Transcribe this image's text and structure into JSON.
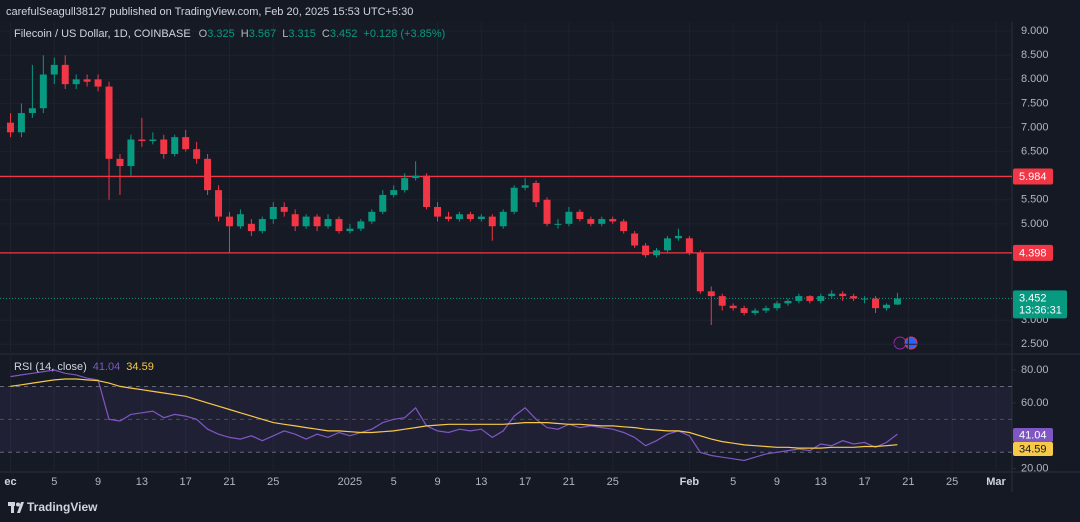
{
  "chart_data": {
    "type": "candlestick",
    "attribution": "carefulSeagull38127 published on TradingView.com, Feb 20, 2025 15:53 UTC+5:30",
    "title": "Filecoin / US Dollar, 1D, COINBASE",
    "legend": {
      "open_label": "O",
      "open": 3.325,
      "high_label": "H",
      "high": 3.567,
      "low_label": "L",
      "low": 3.315,
      "close_label": "C",
      "close": 3.452,
      "change": "+0.128 (+3.85%)"
    },
    "categories": [
      "ec",
      null,
      null,
      null,
      "5",
      null,
      null,
      null,
      "9",
      null,
      null,
      null,
      "13",
      null,
      null,
      null,
      "17",
      null,
      null,
      null,
      "21",
      null,
      null,
      null,
      "25",
      null,
      null,
      null,
      null,
      null,
      null,
      "2025",
      null,
      null,
      null,
      "5",
      null,
      null,
      null,
      "9",
      null,
      null,
      null,
      "13",
      null,
      null,
      null,
      "17",
      null,
      null,
      null,
      "21",
      null,
      null,
      null,
      "25",
      null,
      null,
      null,
      null,
      null,
      null,
      "Feb",
      null,
      null,
      null,
      "5",
      null,
      null,
      null,
      "9",
      null,
      null,
      null,
      "13",
      null,
      null,
      null,
      "17",
      null,
      null,
      null,
      "21",
      null,
      null,
      null,
      "25",
      null,
      null,
      null,
      "Mar"
    ],
    "open": [
      7.1,
      6.9,
      7.3,
      7.4,
      8.1,
      8.3,
      7.9,
      8.0,
      8.0,
      7.85,
      6.35,
      6.2,
      6.75,
      6.72,
      6.75,
      6.45,
      6.8,
      6.55,
      6.35,
      5.7,
      5.15,
      4.95,
      5.0,
      4.85,
      5.1,
      5.35,
      5.2,
      4.95,
      5.15,
      4.95,
      5.1,
      4.85,
      4.9,
      5.05,
      5.25,
      5.6,
      5.7,
      5.95,
      6.0,
      5.35,
      5.15,
      5.1,
      5.2,
      5.1,
      5.15,
      4.95,
      5.25,
      5.75,
      5.85,
      5.5,
      5.0,
      5.0,
      5.25,
      5.1,
      5.0,
      5.1,
      5.05,
      4.8,
      4.55,
      4.35,
      4.45,
      4.7,
      4.7,
      4.4,
      3.6,
      3.5,
      3.3,
      3.25,
      3.15,
      3.2,
      3.25,
      3.35,
      3.4,
      3.5,
      3.4,
      3.5,
      3.55,
      3.5,
      3.45,
      3.45,
      3.25,
      3.325,
      null,
      null,
      null,
      null,
      null,
      null,
      null,
      null,
      null
    ],
    "high": [
      7.3,
      7.5,
      8.3,
      8.5,
      8.45,
      8.5,
      8.1,
      8.1,
      8.1,
      7.95,
      6.45,
      6.85,
      7.2,
      6.9,
      6.85,
      6.85,
      6.95,
      6.7,
      6.45,
      5.8,
      5.25,
      5.3,
      5.1,
      5.15,
      5.45,
      5.45,
      5.3,
      5.2,
      5.2,
      5.2,
      5.15,
      5.0,
      5.1,
      5.3,
      5.7,
      5.8,
      6.05,
      6.3,
      6.05,
      5.45,
      5.25,
      5.25,
      5.25,
      5.2,
      5.2,
      5.3,
      5.8,
      5.95,
      5.9,
      5.55,
      5.1,
      5.35,
      5.3,
      5.15,
      5.15,
      5.15,
      5.1,
      4.85,
      4.6,
      4.5,
      4.75,
      4.9,
      4.75,
      4.45,
      3.7,
      3.55,
      3.35,
      3.3,
      3.25,
      3.3,
      3.4,
      3.45,
      3.55,
      3.52,
      3.55,
      3.62,
      3.6,
      3.55,
      3.5,
      3.5,
      3.35,
      3.567,
      null,
      null,
      null,
      null,
      null,
      null,
      null,
      null,
      null
    ],
    "low": [
      6.8,
      6.8,
      7.2,
      7.3,
      7.9,
      7.8,
      7.8,
      7.85,
      7.75,
      5.5,
      5.6,
      6.0,
      6.6,
      6.65,
      6.35,
      6.4,
      6.5,
      6.25,
      5.6,
      5.05,
      4.4,
      4.9,
      4.75,
      4.8,
      5.0,
      5.15,
      4.85,
      4.9,
      4.85,
      4.9,
      4.8,
      4.8,
      4.85,
      5.0,
      5.2,
      5.55,
      5.65,
      5.9,
      5.3,
      5.05,
      5.05,
      5.05,
      5.05,
      5.05,
      4.65,
      4.9,
      5.2,
      5.7,
      5.35,
      4.95,
      4.9,
      4.95,
      5.05,
      4.95,
      4.95,
      5.0,
      4.8,
      4.5,
      4.3,
      4.3,
      4.4,
      4.65,
      4.35,
      3.55,
      2.9,
      3.2,
      3.2,
      3.1,
      3.1,
      3.15,
      3.2,
      3.3,
      3.35,
      3.35,
      3.35,
      3.45,
      3.4,
      3.4,
      3.35,
      3.15,
      3.2,
      3.315,
      null,
      null,
      null,
      null,
      null,
      null,
      null,
      null,
      null
    ],
    "close": [
      6.9,
      7.3,
      7.4,
      8.1,
      8.3,
      7.9,
      8.0,
      7.95,
      7.85,
      6.35,
      6.2,
      6.75,
      6.72,
      6.75,
      6.45,
      6.8,
      6.55,
      6.35,
      5.7,
      5.15,
      4.95,
      5.2,
      4.85,
      5.1,
      5.35,
      5.25,
      4.95,
      5.15,
      4.95,
      5.1,
      4.85,
      4.9,
      5.05,
      5.25,
      5.6,
      5.7,
      5.95,
      6.0,
      5.35,
      5.15,
      5.1,
      5.2,
      5.1,
      5.15,
      4.95,
      5.25,
      5.75,
      5.8,
      5.45,
      5.0,
      5.0,
      5.25,
      5.1,
      5.0,
      5.1,
      5.05,
      4.85,
      4.55,
      4.35,
      4.45,
      4.7,
      4.75,
      4.4,
      3.6,
      3.5,
      3.3,
      3.25,
      3.15,
      3.2,
      3.25,
      3.35,
      3.4,
      3.5,
      3.4,
      3.5,
      3.55,
      3.5,
      3.45,
      3.45,
      3.25,
      3.32,
      3.452,
      null,
      null,
      null,
      null,
      null,
      null,
      null,
      null,
      null
    ],
    "up_color": "#089981",
    "down_color": "#f23645",
    "ylim": [
      2.34,
      9.19
    ],
    "yticks": [
      {
        "value": 9,
        "label": "9.000"
      },
      {
        "value": 8.5,
        "label": "8.500"
      },
      {
        "value": 8,
        "label": "8.000"
      },
      {
        "value": 7.5,
        "label": "7.500"
      },
      {
        "value": 7,
        "label": "7.000"
      },
      {
        "value": 6.5,
        "label": "6.500"
      },
      {
        "value": 5.5,
        "label": "5.500"
      },
      {
        "value": 5,
        "label": "5.000"
      },
      {
        "value": 3,
        "label": "3.000"
      },
      {
        "value": 2.5,
        "label": "2.500"
      }
    ],
    "grid": true,
    "levels": [
      {
        "value": 5.984,
        "color": "#f23645"
      },
      {
        "value": 4.398,
        "color": "#f23645"
      }
    ],
    "last_price": {
      "value": 3.452,
      "countdown": "13:36:31",
      "color": "#089981"
    },
    "rsi": {
      "title": "RSI (14, close)",
      "series": [
        {
          "color": "#7e57c2",
          "values": [
            76,
            77,
            78,
            79,
            80,
            78,
            77,
            75,
            74,
            50,
            49,
            53,
            54,
            55,
            51,
            53,
            52,
            50,
            44,
            41,
            39,
            38,
            40,
            37,
            40,
            43,
            41,
            38,
            41,
            39,
            42,
            40,
            42,
            44,
            48,
            50,
            51,
            57,
            46,
            43,
            42,
            44,
            43,
            44,
            39,
            43,
            52,
            57,
            50,
            45,
            44,
            47,
            45,
            46,
            45,
            44,
            42,
            39,
            34,
            37,
            41,
            43,
            40,
            30,
            28,
            27,
            26,
            25,
            27,
            29,
            30,
            31,
            32,
            31,
            35,
            34,
            37,
            35,
            36,
            33,
            36,
            41.04,
            null,
            null,
            null,
            null,
            null,
            null,
            null,
            null,
            null
          ]
        },
        {
          "color": "#f7c948",
          "values": [
            70,
            71,
            72,
            73,
            74,
            74.5,
            74.5,
            74,
            73.5,
            72,
            70,
            69,
            68,
            67,
            66,
            65,
            64,
            62,
            60,
            58,
            56,
            54,
            52,
            50,
            48,
            47,
            46,
            45,
            44,
            43,
            43,
            42.5,
            42,
            42,
            42.5,
            43,
            44,
            45,
            46,
            46.5,
            47,
            47,
            47,
            47,
            47,
            47,
            47.5,
            48,
            48,
            48,
            47.5,
            47,
            47,
            46.5,
            46,
            46,
            45.5,
            45,
            44,
            43.5,
            43,
            43,
            42,
            40,
            38,
            36.5,
            35.5,
            34.5,
            34,
            33.5,
            33,
            33,
            32.5,
            32.5,
            32.5,
            33,
            33,
            33,
            33.5,
            33.5,
            34,
            34.59,
            null,
            null,
            null,
            null,
            null,
            null,
            null,
            null,
            null
          ]
        }
      ],
      "ylim": [
        18,
        88.5
      ],
      "yticks": [
        {
          "value": 80,
          "label": "80.00"
        },
        {
          "value": 60,
          "label": "60.00"
        },
        {
          "value": 20,
          "label": "20.00"
        }
      ],
      "bands": [
        70,
        50,
        30
      ]
    },
    "footer": "TradingView"
  }
}
